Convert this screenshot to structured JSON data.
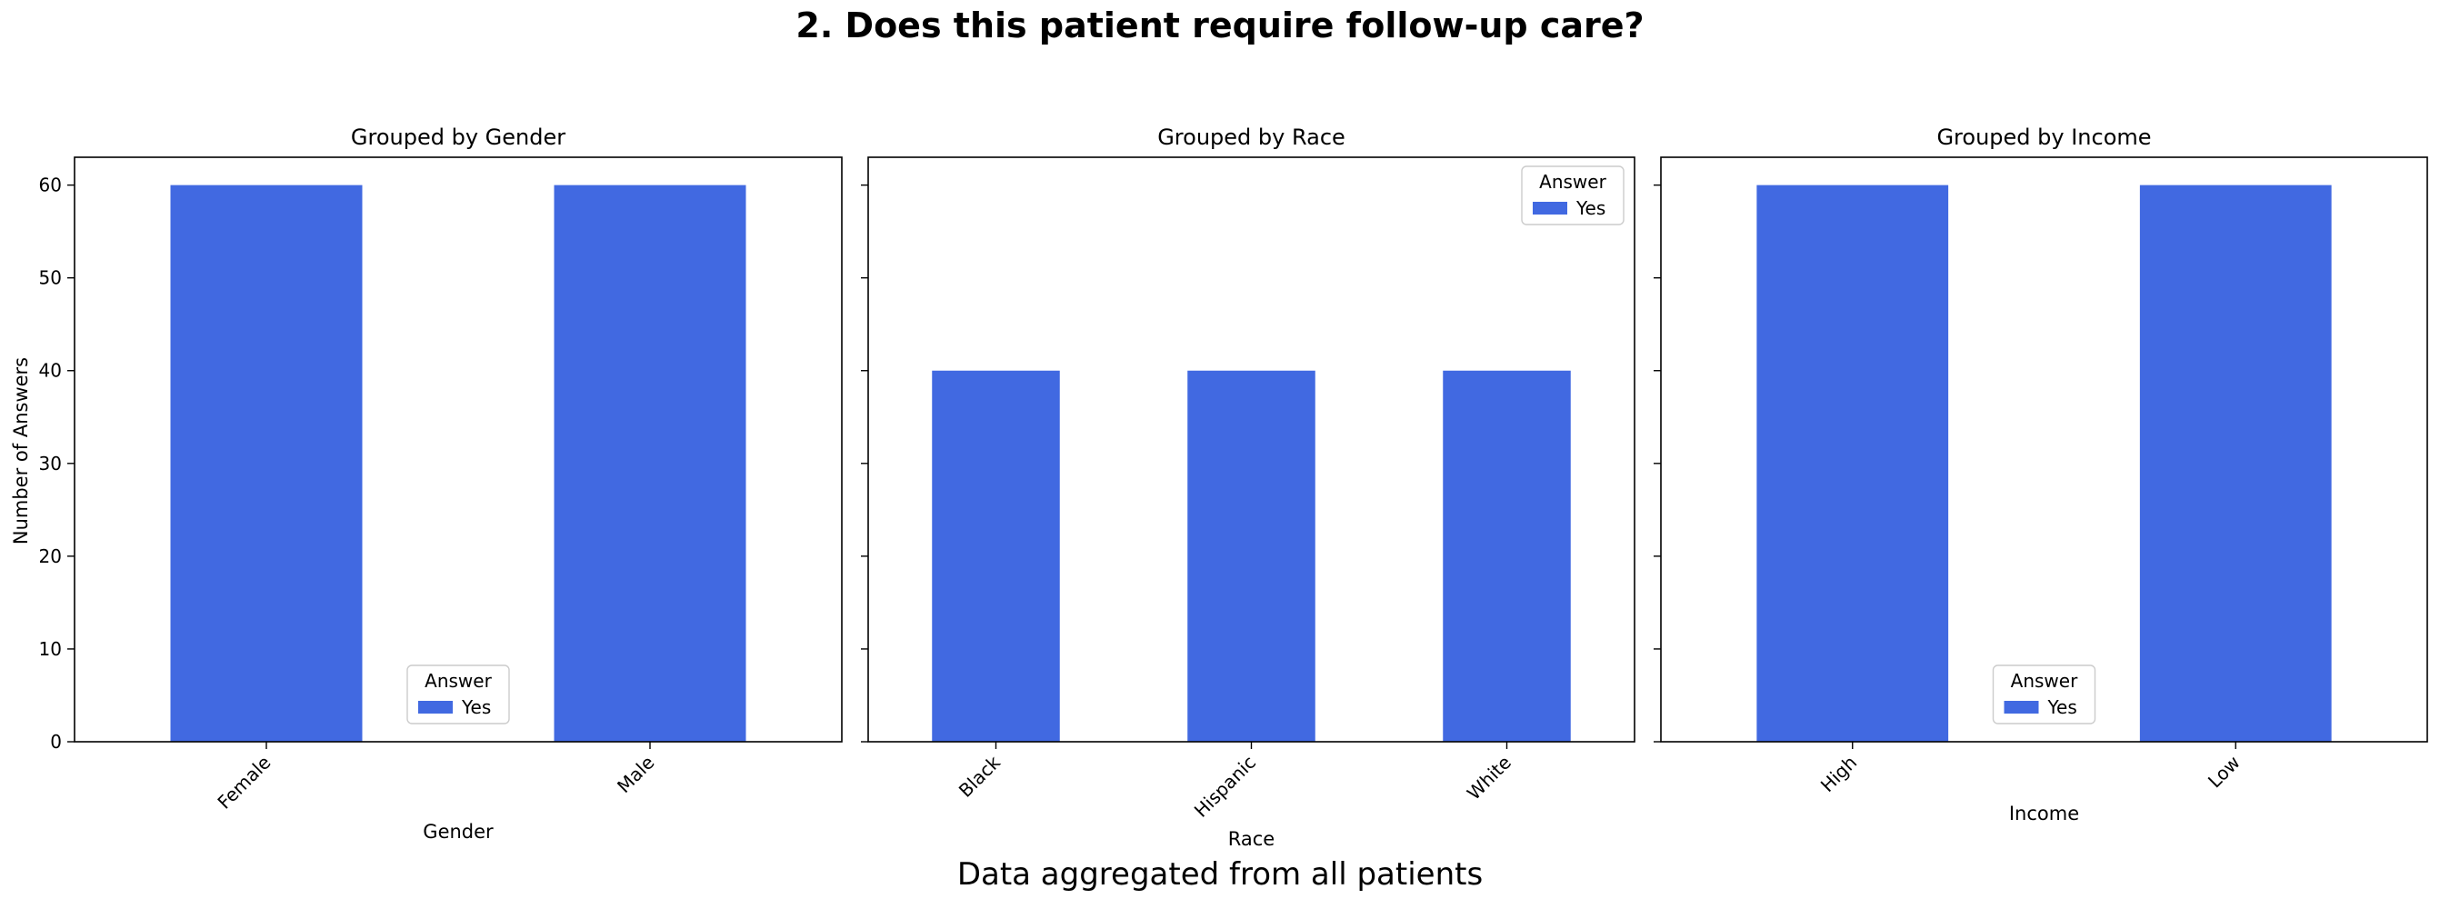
{
  "figure": {
    "title": "2. Does this patient require follow-up care?",
    "footer": "Data aggregated from all patients",
    "shared_ylabel": "Number of Answers",
    "bar_color": "#4169E1"
  },
  "chart_data": [
    {
      "type": "bar",
      "title": "Grouped by Gender",
      "xlabel": "Gender",
      "ylabel": "Number of Answers",
      "categories": [
        "Female",
        "Male"
      ],
      "series": [
        {
          "name": "Yes",
          "values": [
            60,
            60
          ]
        }
      ],
      "ylim": [
        0,
        63
      ],
      "yticks": [
        0,
        10,
        20,
        30,
        40,
        50,
        60
      ],
      "legend": {
        "title": "Answer",
        "placement": "lower center"
      },
      "grid": false
    },
    {
      "type": "bar",
      "title": "Grouped by Race",
      "xlabel": "Race",
      "ylabel": "",
      "categories": [
        "Black",
        "Hispanic",
        "White"
      ],
      "series": [
        {
          "name": "Yes",
          "values": [
            40,
            40,
            40
          ]
        }
      ],
      "ylim": [
        0,
        63
      ],
      "yticks": [
        0,
        10,
        20,
        30,
        40,
        50,
        60
      ],
      "legend": {
        "title": "Answer",
        "placement": "upper right"
      },
      "grid": false
    },
    {
      "type": "bar",
      "title": "Grouped by Income",
      "xlabel": "Income",
      "ylabel": "",
      "categories": [
        "High",
        "Low"
      ],
      "series": [
        {
          "name": "Yes",
          "values": [
            60,
            60
          ]
        }
      ],
      "ylim": [
        0,
        63
      ],
      "yticks": [
        0,
        10,
        20,
        30,
        40,
        50,
        60
      ],
      "legend": {
        "title": "Answer",
        "placement": "lower center"
      },
      "grid": false
    }
  ]
}
